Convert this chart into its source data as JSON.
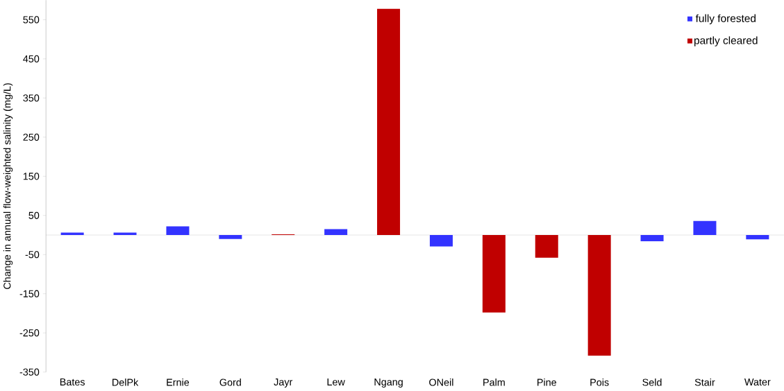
{
  "chart_data": {
    "type": "bar",
    "ylabel": "Change in annual flow-weighted salinity (mg/L)",
    "categories": [
      "Bates",
      "DelPk",
      "Ernie",
      "Gord",
      "Jayr",
      "Lew",
      "Ngang",
      "ONeil",
      "Palm",
      "Pine",
      "Pois",
      "Seld",
      "Stair",
      "Water"
    ],
    "series": [
      {
        "name": "fully forested",
        "color": "#3333ff",
        "values": [
          6,
          6,
          22,
          -10,
          null,
          15,
          null,
          -29,
          null,
          null,
          null,
          -16,
          36,
          -11
        ]
      },
      {
        "name": "partly cleared",
        "color": "#c00000",
        "values": [
          null,
          null,
          null,
          null,
          2,
          null,
          578,
          null,
          -198,
          -58,
          -308,
          null,
          null,
          null
        ]
      }
    ],
    "ylim": [
      -350,
      600
    ],
    "yticks": [
      -350,
      -250,
      -150,
      -50,
      50,
      150,
      250,
      350,
      450,
      550
    ],
    "grid": false,
    "legend": "top right"
  }
}
